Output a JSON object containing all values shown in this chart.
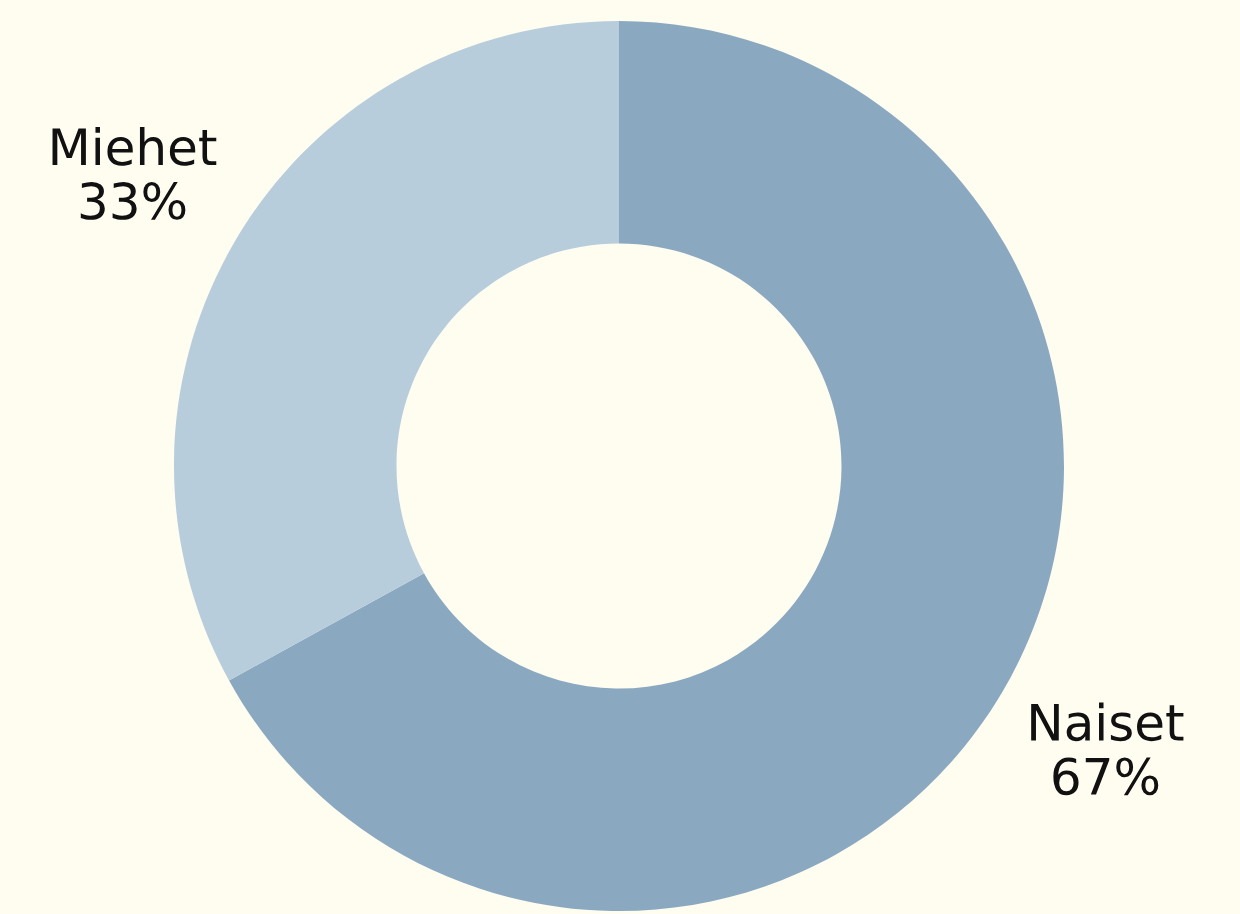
{
  "chart_data": {
    "type": "donut",
    "categories": [
      "Naiset",
      "Miehet"
    ],
    "values": [
      67,
      33
    ],
    "value_labels": [
      "67%",
      "33%"
    ],
    "colors": [
      "#8aa9c1",
      "#b7cddc"
    ]
  }
}
